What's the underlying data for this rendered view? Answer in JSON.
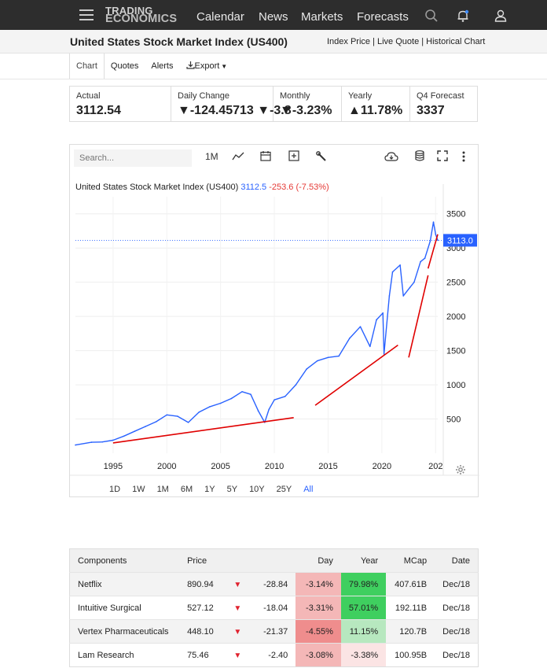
{
  "nav": {
    "logo_line1": "TRADING",
    "logo_line2": "ECONOMICS",
    "links": [
      "Calendar",
      "News",
      "Markets",
      "Forecasts"
    ],
    "icons": [
      "search-icon",
      "notification-bell-icon",
      "user-icon"
    ]
  },
  "title": {
    "text": "United States Stock Market Index (US400)",
    "links": "Index Price | Live Quote | Historical Chart"
  },
  "tabs": [
    "Chart",
    "Quotes",
    "Alerts",
    "Export"
  ],
  "stats": [
    {
      "label": "Actual",
      "value": "3112.54",
      "tone": "neutral"
    },
    {
      "label": "Daily Change",
      "value": "▼-124.45713 ▼-3.8",
      "tone": "neg"
    },
    {
      "label": "Monthly",
      "value": "▼-3.23%",
      "tone": "neg"
    },
    {
      "label": "Yearly",
      "value": "▲11.78%",
      "tone": "pos"
    },
    {
      "label": "Q4 Forecast",
      "value": "3337",
      "tone": "neutral"
    }
  ],
  "chart_toolbar": {
    "search_placeholder": "Search...",
    "interval": "1M",
    "icons": [
      "line-chart-icon",
      "calendar-icon",
      "add-indicator-icon",
      "tools-wrench-icon",
      "download-cloud-icon",
      "database-icon",
      "fullscreen-icon",
      "more-vertical-icon"
    ]
  },
  "chart_legend": {
    "name": "United States Stock Market Index (US400)",
    "value": "3112.5",
    "change": "-253.6 (-7.53%)"
  },
  "chart_data": {
    "type": "line",
    "xlabel": "",
    "ylabel": "",
    "x_ticks": [
      "1995",
      "2000",
      "2005",
      "2010",
      "2015",
      "2020",
      "202"
    ],
    "y_ticks": [
      500,
      1000,
      1500,
      2000,
      2500,
      3000,
      3500
    ],
    "ylim": [
      0,
      3750
    ],
    "xlim": [
      1991.5,
      2025.2
    ],
    "current_value_label": "3113.0",
    "series": [
      {
        "color": "#2962ff",
        "x": [
          1991.5,
          1993,
          1994,
          1995,
          1996,
          1997,
          1998,
          1999,
          2000,
          2001,
          2002,
          2003,
          2004,
          2005,
          2006,
          2007,
          2007.8,
          2008.5,
          2009.1,
          2009.5,
          2010,
          2011,
          2012,
          2013,
          2014,
          2015,
          2016,
          2017,
          2018,
          2018.9,
          2019.5,
          2020.1,
          2020.2,
          2020.7,
          2021,
          2021.7,
          2022,
          2022.6,
          2023,
          2023.6,
          2024,
          2024.5,
          2024.8,
          2025,
          2025.2
        ],
        "y": [
          120,
          160,
          165,
          190,
          250,
          320,
          390,
          460,
          560,
          540,
          450,
          600,
          680,
          730,
          800,
          900,
          860,
          620,
          450,
          640,
          780,
          830,
          1000,
          1230,
          1350,
          1400,
          1420,
          1680,
          1850,
          1560,
          1950,
          2050,
          1450,
          2300,
          2650,
          2750,
          2300,
          2420,
          2500,
          2800,
          2850,
          3100,
          3380,
          3200,
          3112.5
        ]
      }
    ],
    "annotations": [
      {
        "type": "trendline",
        "color": "#e00000",
        "x1": 1995,
        "y1": 150,
        "x2": 2011.8,
        "y2": 520
      },
      {
        "type": "trendline",
        "color": "#e00000",
        "x1": 2013.8,
        "y1": 700,
        "x2": 2021.5,
        "y2": 1580
      },
      {
        "type": "trendline",
        "color": "#e00000",
        "x1": 2022.5,
        "y1": 1400,
        "x2": 2024.3,
        "y2": 2600
      },
      {
        "type": "trendline",
        "color": "#e00000",
        "x1": 2024.3,
        "y1": 2700,
        "x2": 2025.2,
        "y2": 3200
      }
    ]
  },
  "ranges": [
    "1D",
    "1W",
    "1M",
    "6M",
    "1Y",
    "5Y",
    "10Y",
    "25Y",
    "All"
  ],
  "active_range": "All",
  "components": {
    "headers": [
      "Components",
      "Price",
      "",
      "Day",
      "Year",
      "MCap",
      "Date"
    ],
    "rows": [
      {
        "name": "Netflix",
        "price": "890.94",
        "change": "-28.84",
        "day": "-3.14%",
        "year": "79.98%",
        "mcap": "407.61B",
        "date": "Dec/18",
        "day_bg": "#f4b7b7",
        "year_bg": "#3fcf5f"
      },
      {
        "name": "Intuitive Surgical",
        "price": "527.12",
        "change": "-18.04",
        "day": "-3.31%",
        "year": "57.01%",
        "mcap": "192.11B",
        "date": "Dec/18",
        "day_bg": "#f4b7b7",
        "year_bg": "#3fcf5f"
      },
      {
        "name": "Vertex Pharmaceuticals",
        "price": "448.10",
        "change": "-21.37",
        "day": "-4.55%",
        "year": "11.15%",
        "mcap": "120.7B",
        "date": "Dec/18",
        "day_bg": "#ef8d8d",
        "year_bg": "#b7e8bf"
      },
      {
        "name": "Lam Research",
        "price": "75.46",
        "change": "-2.40",
        "day": "-3.08%",
        "year": "-3.38%",
        "mcap": "100.95B",
        "date": "Dec/18",
        "day_bg": "#f4b7b7",
        "year_bg": "#fbe4e4"
      }
    ]
  }
}
